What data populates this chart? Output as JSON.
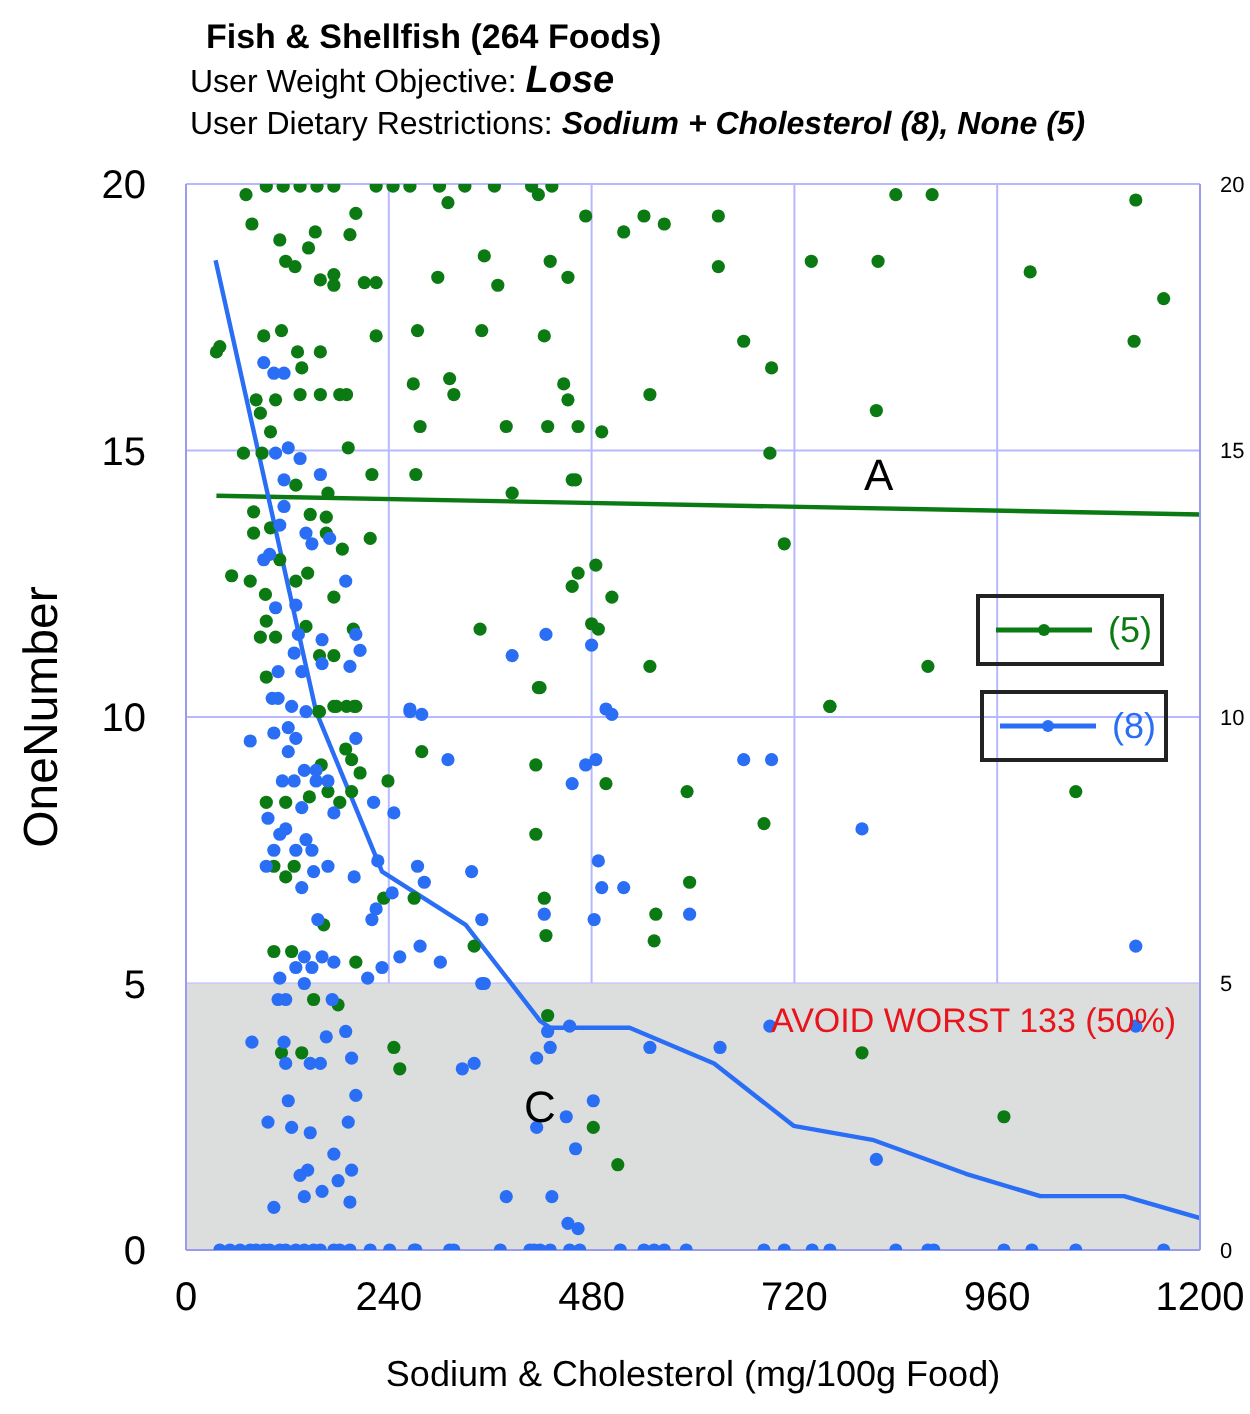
{
  "chart_data": {
    "type": "scatter",
    "title": "Fish & Shellfish (264 Foods)",
    "subtitle": "User Weight Objective: Lose\nUser Dietary Restrictions: Sodium + Cholesterol (8), None (5)",
    "xlabel": "Sodium & Cholesterol (mg/100g Food)",
    "ylabel": "OneNumber",
    "xlim": [
      0,
      1200
    ],
    "xticks": [
      0,
      240,
      480,
      720,
      960,
      1200
    ],
    "ylim": [
      0,
      20
    ],
    "yticks": [
      0,
      5,
      10,
      15,
      20
    ],
    "y2lim": [
      0,
      20
    ],
    "y2ticks": [
      0,
      5,
      10,
      15,
      20
    ],
    "grid": true,
    "legend": "right",
    "marker": "circle",
    "bands": [
      {
        "axis": "y",
        "from": 0,
        "to": 5,
        "label": "AVOID WORST 133 (50%)",
        "color": "#dcdddd"
      }
    ],
    "annotations": [
      "A",
      "C"
    ],
    "series": [
      {
        "name": "(5)",
        "type": "scatter",
        "color": "#0b7a12",
        "x": [
          409,
          433,
          417,
          473,
          518,
          542,
          566,
          630,
          840,
          883,
          1124,
          431,
          452,
          630,
          740,
          819,
          999,
          1157,
          424,
          660,
          1122,
          693,
          447,
          452,
          549,
          817,
          428,
          464,
          492,
          691,
          457,
          461,
          708,
          485,
          464,
          457,
          504,
          480,
          488,
          549,
          878,
          419,
          762,
          71,
          95,
          115,
          135,
          155,
          175,
          225,
          245,
          265,
          300,
          330,
          365,
          40,
          36,
          92,
          113,
          225,
          274,
          350,
          353,
          369,
          298,
          211,
          225,
          310,
          201,
          194,
          78,
          111,
          118,
          129,
          145,
          153,
          175,
          159,
          175,
          132,
          159,
          137,
          269,
          312,
          317,
          379,
          277,
          83,
          106,
          135,
          159,
          182,
          190,
          88,
          100,
          68,
          90,
          192,
          220,
          272,
          386,
          168,
          130,
          80,
          100,
          147,
          166,
          80,
          166,
          218,
          185,
          54,
          76,
          111,
          144,
          175,
          94,
          130,
          198,
          348,
          95,
          106,
          88,
          142,
          158,
          175,
          95,
          417,
          190,
          201,
          178,
          158,
          157,
          175,
          199,
          189,
          196,
          279,
          160,
          206,
          239,
          95,
          118,
          146,
          168,
          196,
          182,
          104,
          128,
          118,
          234,
          270,
          163,
          341,
          104,
          125,
          201,
          151,
          180,
          113,
          137,
          246,
          253,
          414,
          414,
          497,
          424,
          426,
          593,
          684,
          596,
          556,
          554,
          762,
          1053,
          428,
          800,
          968,
          482,
          511
        ],
        "values": [
          19.96,
          19.96,
          19.8,
          19.4,
          19.1,
          19.4,
          19.25,
          19.4,
          19.8,
          19.8,
          19.7,
          18.55,
          18.25,
          18.45,
          18.55,
          18.55,
          18.35,
          17.85,
          17.15,
          17.05,
          17.05,
          16.55,
          16.25,
          15.95,
          16.05,
          15.75,
          15.45,
          15.45,
          15.35,
          14.95,
          14.45,
          14.45,
          13.25,
          12.85,
          12.7,
          12.45,
          12.25,
          11.75,
          11.65,
          10.95,
          10.95,
          10.55,
          10.2,
          19.8,
          19.96,
          19.96,
          19.96,
          19.96,
          19.96,
          19.96,
          19.96,
          19.96,
          19.96,
          19.96,
          19.96,
          16.95,
          16.85,
          17.15,
          17.25,
          17.15,
          17.25,
          17.25,
          18.65,
          18.1,
          18.25,
          18.15,
          18.15,
          19.65,
          19.45,
          19.05,
          19.25,
          18.95,
          18.55,
          18.45,
          18.8,
          19.1,
          18.3,
          18.2,
          18.1,
          16.85,
          16.85,
          16.55,
          16.25,
          16.35,
          16.05,
          15.45,
          15.45,
          15.95,
          15.95,
          16.05,
          16.05,
          16.05,
          16.05,
          15.7,
          15.35,
          14.95,
          14.95,
          15.05,
          14.55,
          14.55,
          14.2,
          14.2,
          14.35,
          13.85,
          13.55,
          13.8,
          13.75,
          13.45,
          13.45,
          13.35,
          13.15,
          12.65,
          12.55,
          12.95,
          12.7,
          12.25,
          12.3,
          12.55,
          11.65,
          11.65,
          11.8,
          11.5,
          11.5,
          11.7,
          11.15,
          11.15,
          10.75,
          10.55,
          10.2,
          10.2,
          10.2,
          10.1,
          10.1,
          10.2,
          10.2,
          9.4,
          9.2,
          9.35,
          9.1,
          8.95,
          8.8,
          8.4,
          8.4,
          8.5,
          8.6,
          8.6,
          8.4,
          7.2,
          7.2,
          7.0,
          6.6,
          6.6,
          6.1,
          5.7,
          5.6,
          5.6,
          5.4,
          4.7,
          4.6,
          3.7,
          3.7,
          3.8,
          3.4,
          9.1,
          7.8,
          8.75,
          6.6,
          5.9,
          8.6,
          8.0,
          6.9,
          6.3,
          5.8,
          10.2,
          8.6,
          4.4,
          3.7,
          2.5,
          2.3,
          1.6
        ]
      },
      {
        "name": "(8)",
        "type": "scatter",
        "color": "#2a6ef5",
        "x": [
          426,
          480,
          497,
          504,
          473,
          485,
          457,
          660,
          693,
          800,
          488,
          492,
          518,
          424,
          483,
          596,
          1124,
          428,
          454,
          431,
          415,
          549,
          632,
          691,
          1124,
          415,
          450,
          482,
          461,
          817,
          433,
          452,
          464,
          407,
          419,
          431,
          454,
          466,
          514,
          542,
          554,
          566,
          592,
          684,
          708,
          741,
          762,
          840,
          878,
          885,
          968,
          1001,
          1053,
          1157,
          76,
          104,
          121,
          130,
          121,
          201,
          310,
          265,
          279,
          114,
          128,
          140,
          154,
          154,
          168,
          137,
          222,
          246,
          175,
          97,
          118,
          111,
          104,
          130,
          149,
          142,
          95,
          151,
          168,
          137,
          199,
          227,
          274,
          282,
          338,
          244,
          225,
          220,
          156,
          350,
          277,
          253,
          301,
          232,
          215,
          140,
          161,
          175,
          130,
          149,
          140,
          111,
          350,
          353,
          109,
          118,
          173,
          78,
          116,
          118,
          147,
          159,
          166,
          189,
          196,
          327,
          341,
          121,
          97,
          125,
          147,
          201,
          192,
          175,
          135,
          144,
          140,
          161,
          180,
          196,
          194,
          104,
          379,
          40,
          52,
          64,
          76,
          83,
          92,
          99,
          111,
          118,
          130,
          140,
          151,
          159,
          175,
          182,
          194,
          218,
          241,
          270,
          272,
          312,
          317,
          372,
          412,
          92,
          104,
          116,
          106,
          121,
          135,
          159,
          116,
          116,
          111,
          142,
          149,
          170,
          92,
          99,
          189,
          106,
          130,
          133,
          161,
          201,
          206,
          128,
          161,
          109,
          137,
          194,
          386,
          102,
          109,
          125,
          142,
          265
        ],
        "values": [
          11.55,
          11.35,
          10.15,
          10.05,
          9.1,
          9.2,
          8.75,
          9.2,
          9.2,
          7.9,
          7.3,
          6.8,
          6.8,
          6.3,
          6.2,
          6.3,
          5.7,
          4.1,
          4.2,
          3.8,
          3.6,
          3.8,
          3.8,
          4.2,
          4.2,
          2.3,
          2.5,
          2.8,
          1.9,
          1.7,
          1.0,
          0.5,
          0.4,
          0,
          0,
          0,
          0,
          0,
          0,
          0,
          0,
          0,
          0,
          0,
          0,
          0,
          0,
          0,
          0,
          0,
          0,
          0,
          0,
          0,
          9.55,
          9.7,
          9.8,
          9.6,
          9.35,
          9.6,
          9.2,
          10.1,
          10.05,
          8.8,
          8.8,
          9.0,
          9.0,
          8.8,
          8.8,
          8.3,
          8.4,
          8.2,
          8.2,
          8.1,
          7.9,
          7.8,
          7.5,
          7.5,
          7.5,
          7.7,
          7.2,
          7.1,
          7.2,
          6.8,
          7.0,
          7.3,
          7.2,
          6.9,
          7.1,
          6.7,
          6.4,
          6.2,
          6.2,
          6.2,
          5.7,
          5.5,
          5.4,
          5.3,
          5.1,
          5.5,
          5.5,
          5.4,
          5.3,
          5.3,
          5.0,
          5.1,
          5.0,
          5.0,
          4.7,
          4.7,
          4.7,
          3.9,
          3.9,
          3.5,
          3.5,
          3.5,
          4.0,
          4.1,
          3.6,
          3.4,
          3.5,
          2.8,
          2.4,
          2.3,
          2.2,
          2.9,
          2.4,
          1.8,
          1.4,
          1.5,
          1.0,
          1.1,
          1.3,
          1.5,
          0.9,
          0.8,
          1.0,
          0,
          0,
          0,
          0,
          0,
          0,
          0,
          0,
          0,
          0,
          0,
          0,
          0,
          0,
          0,
          0,
          0,
          0,
          0,
          0,
          0,
          0,
          0,
          0,
          16.65,
          16.45,
          16.45,
          14.95,
          15.05,
          14.85,
          14.55,
          14.45,
          13.95,
          13.6,
          13.45,
          13.25,
          13.35,
          12.95,
          13.05,
          12.55,
          12.05,
          12.1,
          11.55,
          11.45,
          11.55,
          11.25,
          11.2,
          11.0,
          10.85,
          10.85,
          10.95,
          11.15,
          10.35,
          10.35,
          10.2,
          10.1,
          10.15
        ]
      },
      {
        "type": "line",
        "marker": "none",
        "color": "#0b7a12",
        "x": [
          36,
          1200
        ],
        "values": [
          14.15,
          13.8
        ]
      },
      {
        "type": "line",
        "marker": "none",
        "color": "#2a6ef5",
        "x": [
          35,
          154,
          232,
          331,
          419,
          431,
          525,
          625,
          719,
          814,
          923,
          1011,
          1110,
          1200
        ],
        "values": [
          18.57,
          10.1,
          7.1,
          6.1,
          4.3,
          4.17,
          4.17,
          3.5,
          2.33,
          2.06,
          1.43,
          1.01,
          1.01,
          0.6
        ]
      }
    ]
  }
}
